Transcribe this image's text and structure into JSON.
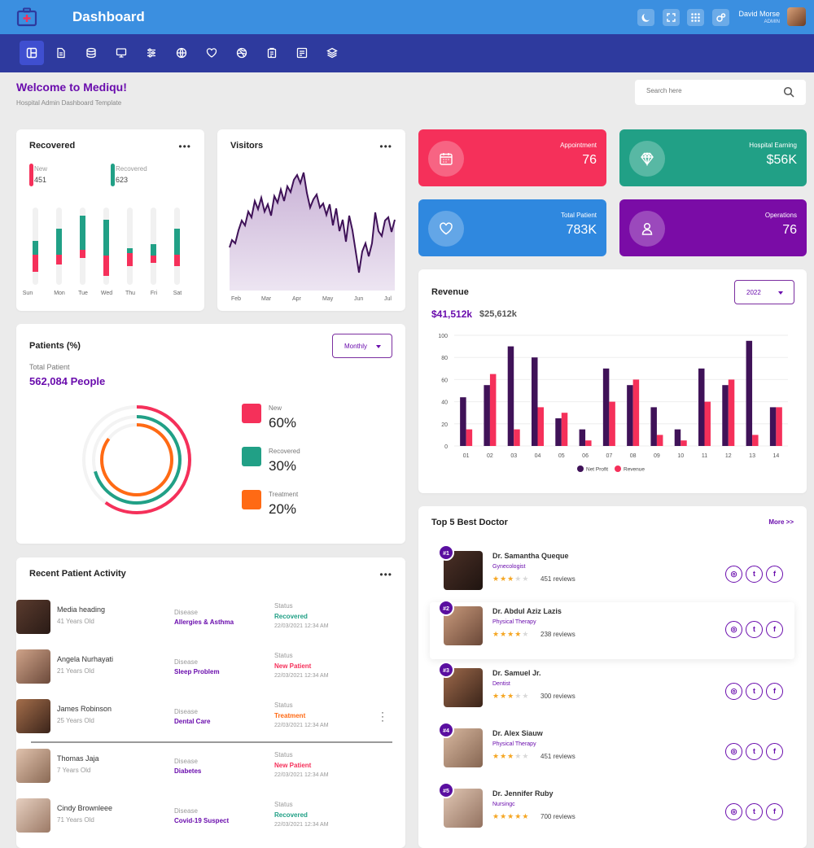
{
  "header": {
    "title": "Dashboard",
    "user_name": "David Morse",
    "user_role": "ADMIN",
    "icons": [
      "moon-icon",
      "fullscreen-icon",
      "apps-grid-icon",
      "settings-icon"
    ]
  },
  "nav": {
    "items": [
      "dashboard-icon",
      "document-icon",
      "database-icon",
      "monitor-icon",
      "sliders-icon",
      "globe-icon",
      "heart-icon",
      "dribbble-icon",
      "clipboard-icon",
      "report-icon",
      "layers-icon"
    ]
  },
  "page": {
    "welcome": "Welcome to Mediqu!",
    "subtitle": "Hospital Admin Dashboard Template",
    "search_placeholder": "Search here"
  },
  "recovered": {
    "title": "Recovered",
    "new_label": "New",
    "new_value": "451",
    "recovered_label": "Recovered",
    "recovered_value": "623",
    "days": [
      "Sun",
      "Mon",
      "Tue",
      "Wed",
      "Thu",
      "Fri",
      "Sat"
    ]
  },
  "visitors": {
    "title": "Visitors",
    "months": [
      "Feb",
      "Mar",
      "Apr",
      "May",
      "Jun",
      "Jul"
    ]
  },
  "stats": [
    {
      "label": "Appointment",
      "value": "76",
      "color": "#f5305a",
      "icon": "calendar-icon"
    },
    {
      "label": "Hospital Earning",
      "value": "$56K",
      "color": "#21a086",
      "icon": "diamond-icon"
    },
    {
      "label": "Total Patient",
      "value": "783K",
      "color": "#2f88df",
      "icon": "heart-icon"
    },
    {
      "label": "Operations",
      "value": "76",
      "color": "#7a0ca6",
      "icon": "user-icon"
    }
  ],
  "patients": {
    "title": "Patients (%)",
    "dropdown": "Monthly",
    "total_label": "Total Patient",
    "total_value": "562,084 People",
    "legend": [
      {
        "label": "New",
        "value": "60%",
        "color": "#f5305a"
      },
      {
        "label": "Recovered",
        "value": "30%",
        "color": "#21a086"
      },
      {
        "label": "Treatment",
        "value": "20%",
        "color": "#ff6a14"
      }
    ]
  },
  "revenue": {
    "title": "Revenue",
    "year": "2022",
    "primary_value": "$41,512k",
    "secondary_value": "$25,612k"
  },
  "chart_data": {
    "type": "bar",
    "categories": [
      "01",
      "02",
      "03",
      "04",
      "05",
      "06",
      "07",
      "08",
      "09",
      "10",
      "11",
      "12",
      "13",
      "14"
    ],
    "series": [
      {
        "name": "Net Profit",
        "color": "#3f1258",
        "values": [
          44,
          55,
          90,
          80,
          25,
          15,
          70,
          55,
          35,
          15,
          70,
          55,
          95,
          35
        ]
      },
      {
        "name": "Revenue",
        "color": "#f5305a",
        "values": [
          15,
          65,
          15,
          35,
          30,
          5,
          40,
          60,
          10,
          5,
          40,
          60,
          10,
          35
        ]
      }
    ],
    "yticks": [
      0,
      20,
      40,
      60,
      80,
      100
    ],
    "ylim": [
      0,
      100
    ],
    "legend": "bottom"
  },
  "activity": {
    "title": "Recent Patient Activity",
    "disease_label": "Disease",
    "status_label": "Status",
    "rows": [
      {
        "name": "Media heading",
        "age": "41 Years Old",
        "disease": "Allergies & Asthma",
        "status": "Recovered",
        "status_color": "#21a086",
        "date": "22/03/2021 12:34 AM"
      },
      {
        "name": "Angela Nurhayati",
        "age": "21 Years Old",
        "disease": "Sleep Problem",
        "status": "New Patient",
        "status_color": "#f5305a",
        "date": "22/03/2021 12:34 AM"
      },
      {
        "name": "James Robinson",
        "age": "25 Years Old",
        "disease": "Dental Care",
        "status": "Treatment",
        "status_color": "#ff6a14",
        "date": "22/03/2021 12:34 AM"
      },
      {
        "name": "Thomas Jaja",
        "age": "7 Years Old",
        "disease": "Diabetes",
        "status": "New Patient",
        "status_color": "#f5305a",
        "date": "22/03/2021 12:34 AM"
      },
      {
        "name": "Cindy Brownleee",
        "age": "71 Years Old",
        "disease": "Covid-19 Suspect",
        "status": "Recovered",
        "status_color": "#21a086",
        "date": "22/03/2021 12:34 AM"
      }
    ]
  },
  "doctors": {
    "title": "Top 5 Best Doctor",
    "more": "More >>",
    "rows": [
      {
        "rank": "#1",
        "name": "Dr. Samantha Queque",
        "specialty": "Gynecologist",
        "rating": 3,
        "reviews": "451 reviews"
      },
      {
        "rank": "#2",
        "name": "Dr. Abdul Aziz Lazis",
        "specialty": "Physical Therapy",
        "rating": 4,
        "reviews": "238 reviews"
      },
      {
        "rank": "#3",
        "name": "Dr. Samuel Jr.",
        "specialty": "Dentist",
        "rating": 3,
        "reviews": "300 reviews"
      },
      {
        "rank": "#4",
        "name": "Dr. Alex Siauw",
        "specialty": "Physical Therapy",
        "rating": 3,
        "reviews": "451 reviews"
      },
      {
        "rank": "#5",
        "name": "Dr. Jennifer Ruby",
        "specialty": "Nursingc",
        "rating": 5,
        "reviews": "700 reviews"
      }
    ]
  }
}
